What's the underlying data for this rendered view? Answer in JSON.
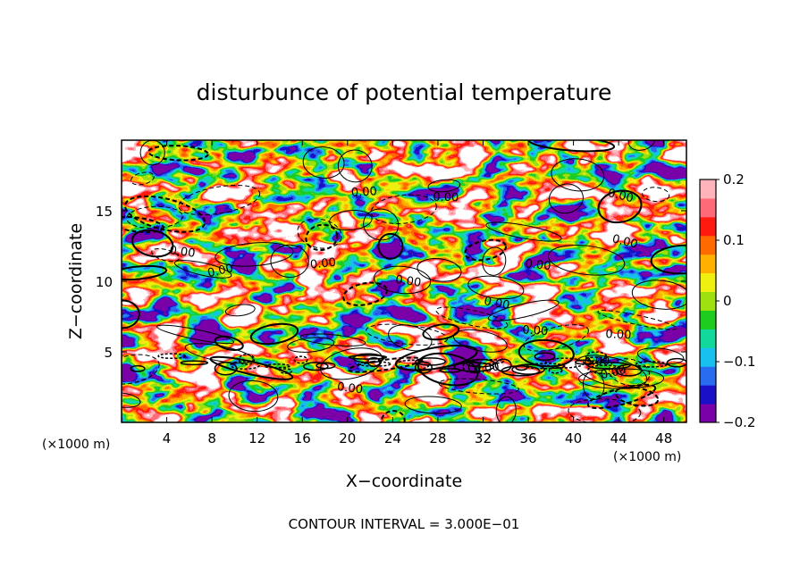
{
  "chart_data": {
    "type": "heatmap",
    "title": "disturbunce of potential temperature",
    "xlabel": "X−coordinate",
    "ylabel": "Z−coordinate",
    "x_unit": "(×1000 m)",
    "y_unit": "(×1000 m)",
    "xlim": [
      0,
      50
    ],
    "ylim": [
      0,
      20
    ],
    "x_ticks": [
      "4",
      "8",
      "12",
      "16",
      "20",
      "24",
      "28",
      "32",
      "36",
      "40",
      "44",
      "48"
    ],
    "y_ticks": [
      "5",
      "10",
      "15"
    ],
    "colorbar": {
      "min": -0.2,
      "max": 0.2,
      "tick_labels": [
        "0.2",
        "0.1",
        "0",
        "−0.1",
        "−0.2"
      ],
      "tick_values": [
        0.2,
        0.1,
        0,
        -0.1,
        -0.2
      ],
      "colors": [
        "#7a00a8",
        "#1a10c8",
        "#2a6cf0",
        "#18c0f0",
        "#12d89c",
        "#1ecc20",
        "#9ee010",
        "#f0f010",
        "#ffb000",
        "#ff6a00",
        "#ff1a10",
        "#ff6a78",
        "#ffb4bc"
      ]
    },
    "contour_interval": 0.3,
    "contour_label": "0.00",
    "contour_label_count": 16,
    "note": "CONTOUR INTERVAL = 3.000E−01",
    "grid": false,
    "legend": "colorbar-right"
  }
}
